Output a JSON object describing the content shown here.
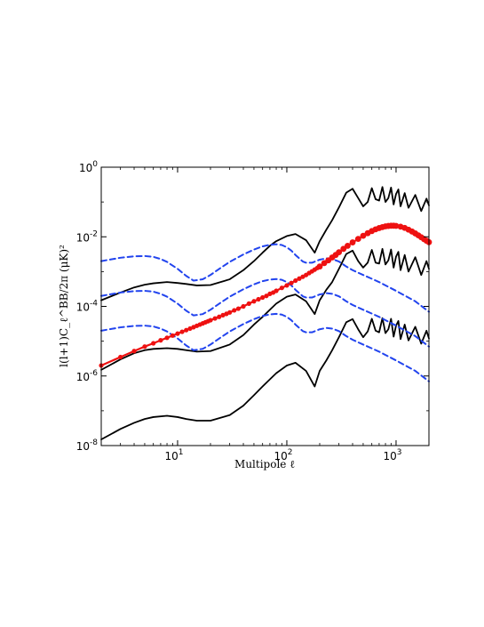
{
  "chart_data": {
    "type": "line",
    "title": "",
    "xlabel": "Multipole ℓ",
    "ylabel": "l(l+1)C_ℓ^BB/2π  (μK)²",
    "xscale": "log",
    "yscale": "log",
    "xlim": [
      2,
      2000
    ],
    "ylim": [
      1e-08,
      1
    ],
    "grid": false,
    "legend": "none",
    "x_ticks": [
      {
        "value": 10,
        "base": "10",
        "exp": "1"
      },
      {
        "value": 100,
        "base": "10",
        "exp": "2"
      },
      {
        "value": 1000,
        "base": "10",
        "exp": "3"
      }
    ],
    "y_ticks": [
      {
        "value": 1e-08,
        "base": "10",
        "exp": "-8"
      },
      {
        "value": 1e-06,
        "base": "10",
        "exp": "-6"
      },
      {
        "value": 0.0001,
        "base": "10",
        "exp": "-4"
      },
      {
        "value": 0.01,
        "base": "10",
        "exp": "-2"
      },
      {
        "value": 1,
        "base": "10",
        "exp": "0"
      }
    ],
    "series": [
      {
        "style": "solid",
        "color": "#000000",
        "x": [
          2,
          3,
          4,
          5,
          6,
          8,
          10,
          12,
          15,
          20,
          30,
          40,
          50,
          60,
          70,
          80,
          100,
          120,
          150,
          180,
          200,
          230,
          260,
          300,
          350,
          400,
          450,
          500,
          550,
          600,
          650,
          700,
          750,
          800,
          850,
          900,
          950,
          1000,
          1050,
          1100,
          1200,
          1300,
          1500,
          1700,
          1900,
          2000
        ],
        "y": [
          1.5e-06,
          3e-06,
          4.5e-06,
          5.5e-06,
          6e-06,
          6.3e-06,
          6e-06,
          5.5e-06,
          5e-06,
          5.2e-06,
          8e-06,
          1.5e-05,
          3e-05,
          5e-05,
          8e-05,
          0.00012,
          0.00019,
          0.00022,
          0.00014,
          6e-05,
          0.00015,
          0.0003,
          0.0005,
          0.0012,
          0.0032,
          0.004,
          0.002,
          0.0013,
          0.0018,
          0.0042,
          0.0018,
          0.0017,
          0.0045,
          0.0016,
          0.0021,
          0.0043,
          0.0013,
          0.0027,
          0.0037,
          0.0011,
          0.003,
          0.001,
          0.0026,
          0.0008,
          0.002,
          0.0012
        ]
      },
      {
        "style": "solid",
        "color": "#000000",
        "x": [
          2,
          3,
          4,
          5,
          6,
          8,
          10,
          12,
          15,
          20,
          30,
          40,
          50,
          60,
          70,
          80,
          100,
          120,
          150,
          180,
          200,
          230,
          260,
          300,
          350,
          400,
          450,
          500,
          550,
          600,
          650,
          700,
          750,
          800,
          850,
          900,
          950,
          1000,
          1050,
          1100,
          1200,
          1300,
          1500,
          1700,
          1900,
          2000
        ],
        "y": [
          0.00015,
          0.00025,
          0.00035,
          0.00042,
          0.00046,
          0.0005,
          0.00047,
          0.00044,
          0.0004,
          0.00041,
          0.0006,
          0.0011,
          0.002,
          0.0035,
          0.0055,
          0.0075,
          0.0105,
          0.012,
          0.008,
          0.0035,
          0.0075,
          0.016,
          0.03,
          0.07,
          0.185,
          0.24,
          0.13,
          0.075,
          0.1,
          0.25,
          0.12,
          0.11,
          0.27,
          0.1,
          0.13,
          0.26,
          0.085,
          0.17,
          0.23,
          0.075,
          0.18,
          0.068,
          0.16,
          0.055,
          0.125,
          0.08
        ]
      },
      {
        "style": "solid",
        "color": "#000000",
        "x": [
          2,
          3,
          4,
          5,
          6,
          8,
          10,
          12,
          15,
          20,
          30,
          40,
          50,
          60,
          70,
          80,
          100,
          120,
          150,
          180,
          200,
          230,
          260,
          300,
          350,
          400,
          450,
          500,
          550,
          600,
          650,
          700,
          750,
          800,
          850,
          900,
          950,
          1000,
          1050,
          1100,
          1200,
          1300,
          1500,
          1700,
          1900,
          2000
        ],
        "y": [
          1.5e-08,
          3e-08,
          4.5e-08,
          5.8e-08,
          6.6e-08,
          7.2e-08,
          6.6e-08,
          5.8e-08,
          5.2e-08,
          5.2e-08,
          7.5e-08,
          1.4e-07,
          2.8e-07,
          5e-07,
          8e-07,
          1.2e-06,
          2e-06,
          2.4e-06,
          1.4e-06,
          5e-07,
          1.4e-06,
          2.8e-06,
          5.5e-06,
          1.3e-05,
          3.5e-05,
          4.3e-05,
          2.2e-05,
          1.3e-05,
          1.9e-05,
          4.4e-05,
          2e-05,
          1.8e-05,
          4.6e-05,
          1.7e-05,
          2.2e-05,
          4.4e-05,
          1.35e-05,
          2.8e-05,
          3.8e-05,
          1.15e-05,
          3e-05,
          1.05e-05,
          2.6e-05,
          8.5e-06,
          2e-05,
          1.2e-05
        ]
      },
      {
        "style": "dashed",
        "color": "#2244ee",
        "x": [
          2,
          3,
          4,
          5,
          6,
          7,
          8,
          10,
          12,
          14,
          17,
          20,
          25,
          30,
          40,
          50,
          60,
          70,
          80,
          90,
          100,
          110,
          120,
          130,
          140,
          150,
          170,
          200,
          230,
          260,
          300,
          350,
          400,
          500,
          700,
          1000,
          1500,
          2000
        ],
        "y": [
          0.002,
          0.0025,
          0.00275,
          0.0028,
          0.00265,
          0.0023,
          0.0019,
          0.0012,
          0.00075,
          0.00055,
          0.0006,
          0.0008,
          0.0013,
          0.0019,
          0.0031,
          0.0043,
          0.0053,
          0.0059,
          0.0061,
          0.0058,
          0.005,
          0.004,
          0.003,
          0.0024,
          0.00195,
          0.0018,
          0.0018,
          0.0022,
          0.0024,
          0.0023,
          0.00195,
          0.0014,
          0.0011,
          0.0008,
          0.0005,
          0.00028,
          0.00014,
          7e-05
        ]
      },
      {
        "style": "dashed",
        "color": "#2244ee",
        "x": [
          2,
          3,
          4,
          5,
          6,
          7,
          8,
          10,
          12,
          14,
          17,
          20,
          25,
          30,
          40,
          50,
          60,
          70,
          80,
          90,
          100,
          110,
          120,
          130,
          140,
          150,
          170,
          200,
          230,
          260,
          300,
          350,
          400,
          500,
          700,
          1000,
          1500,
          2000
        ],
        "y": [
          0.0002,
          0.00025,
          0.000275,
          0.00028,
          0.000265,
          0.00023,
          0.00019,
          0.00012,
          7.5e-05,
          5.5e-05,
          6e-05,
          8e-05,
          0.00013,
          0.00019,
          0.00031,
          0.00043,
          0.00053,
          0.00059,
          0.00061,
          0.00058,
          0.0005,
          0.0004,
          0.0003,
          0.00024,
          0.000195,
          0.00018,
          0.00018,
          0.00022,
          0.00024,
          0.00023,
          0.000195,
          0.00014,
          0.00011,
          8e-05,
          5e-05,
          2.8e-05,
          1.4e-05,
          7e-06
        ]
      },
      {
        "style": "dashed",
        "color": "#2244ee",
        "x": [
          2,
          3,
          4,
          5,
          6,
          7,
          8,
          10,
          12,
          14,
          17,
          20,
          25,
          30,
          40,
          50,
          60,
          70,
          80,
          90,
          100,
          110,
          120,
          130,
          140,
          150,
          170,
          200,
          230,
          260,
          300,
          350,
          400,
          500,
          700,
          1000,
          1500,
          2000
        ],
        "y": [
          2e-05,
          2.5e-05,
          2.75e-05,
          2.8e-05,
          2.65e-05,
          2.3e-05,
          1.9e-05,
          1.2e-05,
          7.5e-06,
          5.5e-06,
          6e-06,
          8e-06,
          1.3e-05,
          1.9e-05,
          3.1e-05,
          4.3e-05,
          5.3e-05,
          5.9e-05,
          6.1e-05,
          5.8e-05,
          5e-05,
          4e-05,
          3e-05,
          2.4e-05,
          1.95e-05,
          1.8e-05,
          1.8e-05,
          2.2e-05,
          2.4e-05,
          2.3e-05,
          1.95e-05,
          1.4e-05,
          1.1e-05,
          8e-06,
          5e-06,
          2.8e-06,
          1.4e-06,
          7e-07
        ]
      },
      {
        "style": "dotted-markers",
        "color": "#ee1111",
        "x": [
          2,
          3,
          4,
          5,
          6,
          7,
          8,
          9,
          10,
          11,
          12,
          13,
          14,
          15,
          16,
          17,
          18,
          19,
          20,
          22,
          24,
          26,
          28,
          30,
          33,
          36,
          40,
          45,
          50,
          55,
          60,
          65,
          70,
          75,
          80,
          90,
          100,
          110,
          120,
          130,
          140,
          150,
          160,
          170,
          180,
          190,
          200,
          220,
          240,
          260,
          280,
          300,
          330,
          360,
          400,
          450,
          500,
          550,
          600,
          650,
          700,
          750,
          800,
          850,
          900,
          950,
          1000,
          1100,
          1200,
          1300,
          1400,
          1500,
          1600,
          1700,
          1800,
          1900,
          2000
        ],
        "y": [
          2e-06,
          3.5e-06,
          5.2e-06,
          7e-06,
          8.7e-06,
          1.06e-05,
          1.25e-05,
          1.45e-05,
          1.65e-05,
          1.86e-05,
          2.08e-05,
          2.3e-05,
          2.53e-05,
          2.77e-05,
          3e-05,
          3.25e-05,
          3.5e-05,
          3.75e-05,
          4e-05,
          4.5e-05,
          5e-05,
          5.6e-05,
          6.1e-05,
          6.7e-05,
          7.7e-05,
          8.6e-05,
          0.0001,
          0.00012,
          0.00014,
          0.00016,
          0.00018,
          0.0002,
          0.00023,
          0.00025,
          0.00028,
          0.00034,
          0.0004,
          0.00047,
          0.00055,
          0.00063,
          0.00071,
          0.0008,
          0.00091,
          0.00102,
          0.00114,
          0.00127,
          0.0014,
          0.00175,
          0.0021,
          0.00255,
          0.003,
          0.0036,
          0.0045,
          0.0055,
          0.0069,
          0.0087,
          0.0107,
          0.0127,
          0.0146,
          0.0164,
          0.0178,
          0.019,
          0.02,
          0.0205,
          0.0208,
          0.0208,
          0.0206,
          0.0195,
          0.018,
          0.016,
          0.0142,
          0.0125,
          0.011,
          0.0097,
          0.0086,
          0.0077,
          0.007
        ]
      }
    ]
  }
}
